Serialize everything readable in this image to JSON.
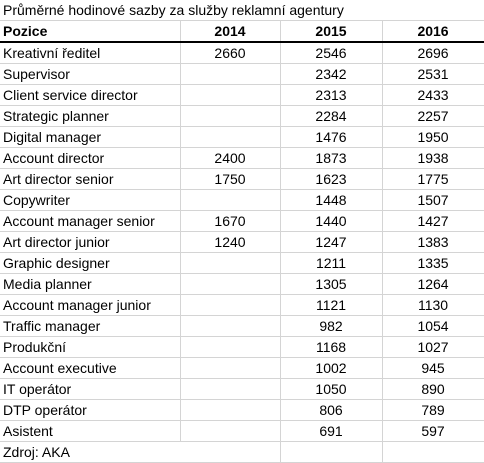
{
  "title": "Průměrné hodinové sazby za služby reklamní agentury",
  "headers": {
    "position": "Pozice",
    "y2014": "2014",
    "y2015": "2015",
    "y2016": "2016"
  },
  "rows": [
    {
      "pozice": "Kreativní ředitel",
      "y2014": "2660",
      "y2015": "2546",
      "y2016": "2696"
    },
    {
      "pozice": "Supervisor",
      "y2014": "",
      "y2015": "2342",
      "y2016": "2531"
    },
    {
      "pozice": "Client service director",
      "y2014": "",
      "y2015": "2313",
      "y2016": "2433"
    },
    {
      "pozice": "Strategic planner",
      "y2014": "",
      "y2015": "2284",
      "y2016": "2257"
    },
    {
      "pozice": "Digital manager",
      "y2014": "",
      "y2015": "1476",
      "y2016": "1950"
    },
    {
      "pozice": "Account director",
      "y2014": "2400",
      "y2015": "1873",
      "y2016": "1938"
    },
    {
      "pozice": "Art director senior",
      "y2014": "1750",
      "y2015": "1623",
      "y2016": "1775"
    },
    {
      "pozice": "Copywriter",
      "y2014": "",
      "y2015": "1448",
      "y2016": "1507"
    },
    {
      "pozice": "Account manager senior",
      "y2014": "1670",
      "y2015": "1440",
      "y2016": "1427"
    },
    {
      "pozice": "Art director junior",
      "y2014": "1240",
      "y2015": "1247",
      "y2016": "1383"
    },
    {
      "pozice": "Graphic designer",
      "y2014": "",
      "y2015": "1211",
      "y2016": "1335"
    },
    {
      "pozice": "Media planner",
      "y2014": "",
      "y2015": "1305",
      "y2016": "1264"
    },
    {
      "pozice": "Account manager junior",
      "y2014": "",
      "y2015": "1121",
      "y2016": "1130"
    },
    {
      "pozice": "Traffic manager",
      "y2014": "",
      "y2015": "982",
      "y2016": "1054"
    },
    {
      "pozice": "Produkční",
      "y2014": "",
      "y2015": "1168",
      "y2016": "1027"
    },
    {
      "pozice": "Account executive",
      "y2014": "",
      "y2015": "1002",
      "y2016": "945"
    },
    {
      "pozice": "IT operátor",
      "y2014": "",
      "y2015": "1050",
      "y2016": "890"
    },
    {
      "pozice": "DTP operátor",
      "y2014": "",
      "y2015": "806",
      "y2016": "789"
    },
    {
      "pozice": "Asistent",
      "y2014": "",
      "y2015": "691",
      "y2016": "597"
    }
  ],
  "source": "Zdroj: AKA"
}
